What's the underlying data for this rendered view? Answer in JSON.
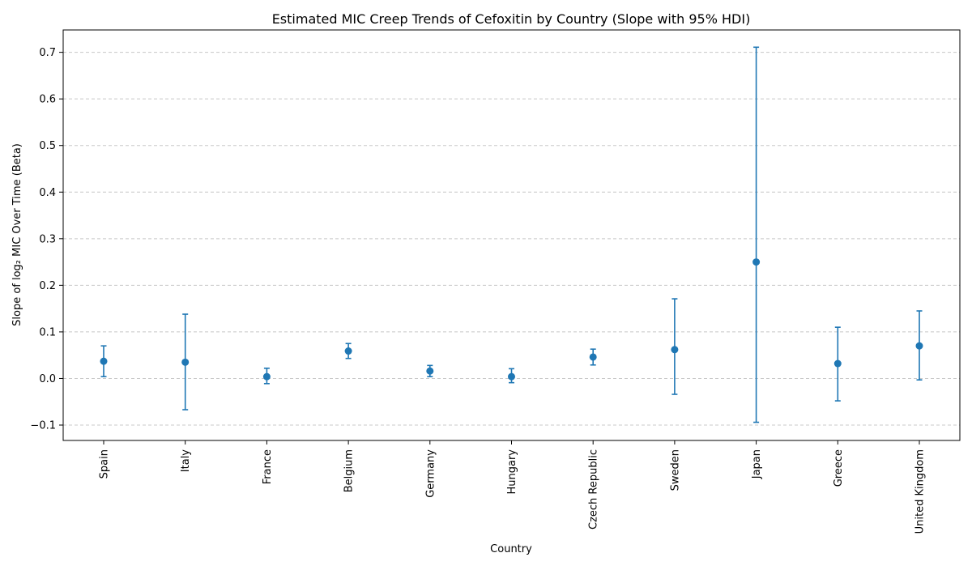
{
  "chart_data": {
    "type": "scatter",
    "title": "Estimated MIC Creep Trends of Cefoxitin by Country (Slope with 95% HDI)",
    "xlabel": "Country",
    "ylabel": "Slope of log₂ MIC Over Time (Beta)",
    "categories": [
      "Spain",
      "Italy",
      "France",
      "Belgium",
      "Germany",
      "Hungary",
      "Czech Republic",
      "Sweden",
      "Japan",
      "Greece",
      "United Kingdom"
    ],
    "series": [
      {
        "values": [
          0.037,
          0.035,
          0.004,
          0.059,
          0.016,
          0.004,
          0.046,
          0.062,
          0.25,
          0.032,
          0.07
        ],
        "hdi_lower": [
          0.004,
          -0.067,
          -0.011,
          0.043,
          0.004,
          -0.009,
          0.029,
          -0.034,
          -0.094,
          -0.048,
          -0.003
        ],
        "hdi_upper": [
          0.07,
          0.138,
          0.022,
          0.075,
          0.028,
          0.021,
          0.063,
          0.171,
          0.711,
          0.11,
          0.145
        ]
      }
    ],
    "ylim": [
      -0.133,
      0.748
    ],
    "yticks": [
      -0.1,
      0.0,
      0.1,
      0.2,
      0.3,
      0.4,
      0.5,
      0.6,
      0.7
    ],
    "ytick_labels": [
      "−0.1",
      "0.0",
      "0.1",
      "0.2",
      "0.3",
      "0.4",
      "0.5",
      "0.6",
      "0.7"
    ],
    "grid": "y-dashed",
    "legend": "none",
    "colors": {
      "marker": "#1f77b4",
      "grid": "#c8c8c8",
      "axis": "#000000"
    }
  }
}
